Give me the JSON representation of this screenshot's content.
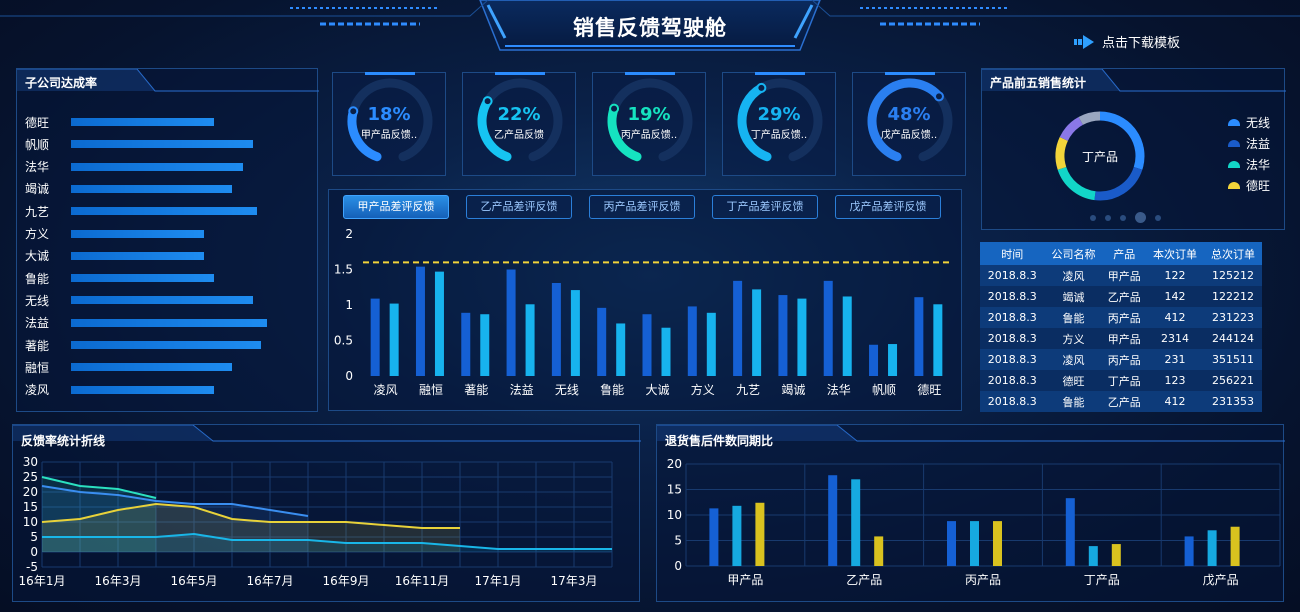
{
  "header": {
    "title": "销售反馈驾驶舱",
    "download_label": "点击下载模板"
  },
  "subsidiary_panel": {
    "title": "子公司达成率",
    "items": [
      {
        "name": "德旺",
        "value": 0.73
      },
      {
        "name": "帆顺",
        "value": 0.93
      },
      {
        "name": "法华",
        "value": 0.88
      },
      {
        "name": "竭诚",
        "value": 0.82
      },
      {
        "name": "九艺",
        "value": 0.95
      },
      {
        "name": "方义",
        "value": 0.68
      },
      {
        "name": "大诚",
        "value": 0.68
      },
      {
        "name": "鲁能",
        "value": 0.73
      },
      {
        "name": "无线",
        "value": 0.93
      },
      {
        "name": "法益",
        "value": 1.0
      },
      {
        "name": "著能",
        "value": 0.97
      },
      {
        "name": "融恒",
        "value": 0.82
      },
      {
        "name": "凌风",
        "value": 0.73
      }
    ]
  },
  "gauges": [
    {
      "pct": "18%",
      "value": 18,
      "label": "甲产品反馈..",
      "color": "#2b8cff"
    },
    {
      "pct": "22%",
      "value": 22,
      "label": "乙产品反馈",
      "color": "#16c4f2"
    },
    {
      "pct": "19%",
      "value": 19,
      "label": "丙产品反馈..",
      "color": "#15e3c0"
    },
    {
      "pct": "29%",
      "value": 29,
      "label": "丁产品反馈..",
      "color": "#16b4f2"
    },
    {
      "pct": "48%",
      "value": 48,
      "label": "戊产品反馈..",
      "color": "#2a7ff0"
    }
  ],
  "tabs": [
    {
      "label": "甲产品差评反馈",
      "active": true
    },
    {
      "label": "乙产品差评反馈",
      "active": false
    },
    {
      "label": "丙产品差评反馈",
      "active": false
    },
    {
      "label": "丁产品差评反馈",
      "active": false
    },
    {
      "label": "戊产品差评反馈",
      "active": false
    }
  ],
  "chart_data": [
    {
      "type": "bar",
      "title": "",
      "categories": [
        "凌风",
        "融恒",
        "著能",
        "法益",
        "无线",
        "鲁能",
        "大诚",
        "方义",
        "九艺",
        "竭诚",
        "法华",
        "帆顺",
        "德旺"
      ],
      "series": [
        {
          "values": [
            1.09,
            1.54,
            0.89,
            1.5,
            1.31,
            0.96,
            0.87,
            0.98,
            1.34,
            1.14,
            1.34,
            0.44,
            1.11
          ],
          "color": "#1560d4"
        },
        {
          "values": [
            1.02,
            1.47,
            0.87,
            1.01,
            1.21,
            0.74,
            0.68,
            0.89,
            1.22,
            1.09,
            1.12,
            0.45,
            1.01
          ],
          "color": "#17b3ee"
        }
      ],
      "reference_line": 1.6,
      "yticks": [
        "0",
        "0.5",
        "1",
        "1.5",
        "2"
      ],
      "ylim": [
        0,
        2
      ]
    },
    {
      "type": "pie",
      "title": "产品前五销售统计",
      "center_label": "丁产品",
      "slices": [
        {
          "name": "无线",
          "value": 30,
          "color": "#2b8cff"
        },
        {
          "name": "法益",
          "value": 22,
          "color": "#1a5bc9"
        },
        {
          "name": "法华",
          "value": 18,
          "color": "#12d6c8"
        },
        {
          "name": "德旺",
          "value": 12,
          "color": "#f2d43a"
        },
        {
          "name": "",
          "value": 10,
          "color": "#8a78e8"
        },
        {
          "name": "",
          "value": 8,
          "color": "#9aa7c0"
        }
      ],
      "legend_position": "right"
    },
    {
      "type": "line",
      "title": "反馈率统计折线",
      "x": [
        "16年1月",
        "16年2月",
        "16年3月",
        "16年4月",
        "16年5月",
        "16年6月",
        "16年7月",
        "16年8月",
        "16年9月",
        "16年10月",
        "16年11月",
        "16年12月",
        "17年1月",
        "17年2月",
        "17年3月",
        "17年4月"
      ],
      "xticks": [
        "16年1月",
        "16年3月",
        "16年5月",
        "16年7月",
        "16年9月",
        "16年11月",
        "17年1月",
        "17年3月"
      ],
      "series": [
        {
          "values": [
            25,
            22,
            21,
            18,
            null,
            null,
            null,
            null,
            null,
            null,
            null,
            null,
            null,
            null,
            null,
            null
          ],
          "color": "#2be0c0"
        },
        {
          "values": [
            22,
            20,
            19,
            17,
            16,
            16,
            14,
            12,
            null,
            null,
            null,
            null,
            null,
            null,
            null,
            null
          ],
          "color": "#3a8ef0"
        },
        {
          "values": [
            10,
            11,
            14,
            16,
            15,
            11,
            10,
            10,
            10,
            9,
            8,
            8,
            null,
            null,
            null,
            null
          ],
          "color": "#e8d23a"
        },
        {
          "values": [
            5,
            5,
            5,
            5,
            6,
            4,
            4,
            4,
            3,
            3,
            3,
            2,
            1,
            1,
            1,
            1
          ],
          "color": "#19b6e8"
        }
      ],
      "yticks": [
        "-5",
        "0",
        "5",
        "10",
        "15",
        "20",
        "25",
        "30"
      ],
      "ylim": [
        -5,
        30
      ]
    },
    {
      "type": "bar",
      "title": "退货售后件数同期比",
      "categories": [
        "甲产品",
        "乙产品",
        "丙产品",
        "丁产品",
        "戊产品"
      ],
      "series": [
        {
          "values": [
            11.3,
            17.8,
            8.8,
            13.3,
            5.8
          ],
          "color": "#1560d4"
        },
        {
          "values": [
            11.8,
            17.0,
            8.8,
            3.9,
            7.0
          ],
          "color": "#16a9e0"
        },
        {
          "values": [
            12.4,
            5.8,
            8.8,
            4.3,
            7.7
          ],
          "color": "#d9c21f"
        }
      ],
      "yticks": [
        "0",
        "5",
        "10",
        "15",
        "20"
      ],
      "ylim": [
        0,
        20
      ]
    }
  ],
  "orders_table": {
    "headers": [
      "时间",
      "公司名称",
      "产品",
      "本次订单",
      "总次订单"
    ],
    "rows": [
      [
        "2018.8.3",
        "凌风",
        "甲产品",
        "122",
        "125212"
      ],
      [
        "2018.8.3",
        "竭诚",
        "乙产品",
        "142",
        "122212"
      ],
      [
        "2018.8.3",
        "鲁能",
        "丙产品",
        "412",
        "231223"
      ],
      [
        "2018.8.3",
        "方义",
        "甲产品",
        "2314",
        "244124"
      ],
      [
        "2018.8.3",
        "凌风",
        "丙产品",
        "231",
        "351511"
      ],
      [
        "2018.8.3",
        "德旺",
        "丁产品",
        "123",
        "256221"
      ],
      [
        "2018.8.3",
        "鲁能",
        "乙产品",
        "412",
        "231353"
      ]
    ]
  },
  "colors": {
    "accent": "#2b8cff",
    "panel_border": "#1d4a86",
    "reference_line": "#f2d43a"
  }
}
